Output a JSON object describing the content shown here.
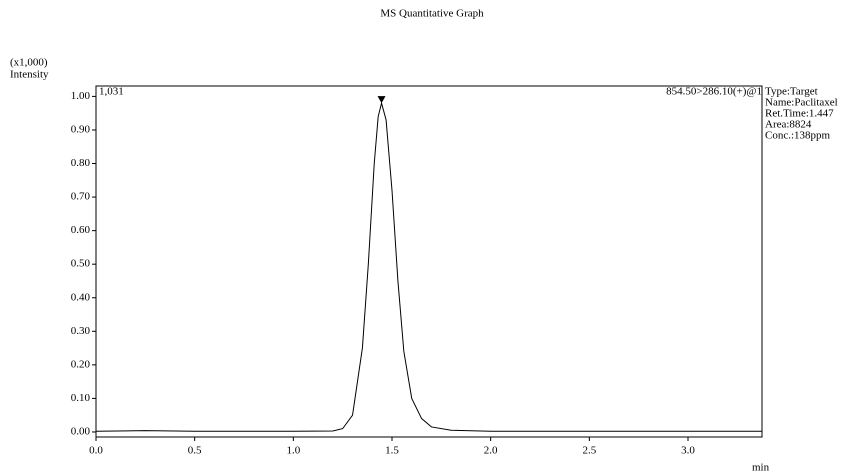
{
  "chart_data": {
    "type": "line",
    "title": "MS Quantitative Graph",
    "y_unit": "(x1,000)",
    "y_label": "Intensity",
    "x_label": "min",
    "max_intensity_label": "1,031",
    "transition": "854.50>286.10(+)@1",
    "info": [
      "Type:Target",
      "Name:Paclitaxel",
      "Ret.Time:1.447",
      "Area:8824",
      "Conc.:138ppm"
    ],
    "x": [
      0,
      0.25,
      0.5,
      1.0,
      1.2,
      1.25,
      1.3,
      1.35,
      1.38,
      1.41,
      1.43,
      1.447,
      1.47,
      1.5,
      1.53,
      1.56,
      1.6,
      1.65,
      1.7,
      1.8,
      2.0,
      3.375
    ],
    "series": [
      {
        "color": "#000000",
        "values": [
          0.002,
          0.004,
          0.002,
          0.002,
          0.003,
          0.01,
          0.05,
          0.25,
          0.5,
          0.8,
          0.94,
          0.98,
          0.93,
          0.72,
          0.45,
          0.24,
          0.1,
          0.04,
          0.015,
          0.005,
          0.002,
          0.002
        ]
      },
      {
        "color": "#000000",
        "values": [
          null,
          null,
          null,
          null,
          null,
          0.002,
          null,
          null,
          null,
          null,
          null,
          null,
          null,
          null,
          null,
          null,
          null,
          null,
          0.008,
          null,
          null,
          null
        ]
      }
    ],
    "xlim": [
      0,
      3.375
    ],
    "ylim": [
      -0.015,
      1.031
    ],
    "xticks": [
      {
        "value": 0,
        "label": "0.0"
      },
      0.5,
      {
        "value": 1,
        "label": "1.0"
      },
      1.5,
      {
        "value": 2,
        "label": "2.0"
      },
      2.5,
      {
        "value": 3,
        "label": "3.0"
      }
    ],
    "yticks": [
      {
        "value": 0,
        "label": "0.00"
      },
      {
        "value": 0.1,
        "label": "0.10"
      },
      {
        "value": 0.2,
        "label": "0.20"
      },
      {
        "value": 0.3,
        "label": "0.30"
      },
      {
        "value": 0.4,
        "label": "0.40"
      },
      {
        "value": 0.5,
        "label": "0.50"
      },
      {
        "value": 0.6,
        "label": "0.60"
      },
      {
        "value": 0.7,
        "label": "0.70"
      },
      {
        "value": 0.8,
        "label": "0.80"
      },
      {
        "value": 0.9,
        "label": "0.90"
      },
      {
        "value": 1,
        "label": "1.00"
      }
    ]
  }
}
